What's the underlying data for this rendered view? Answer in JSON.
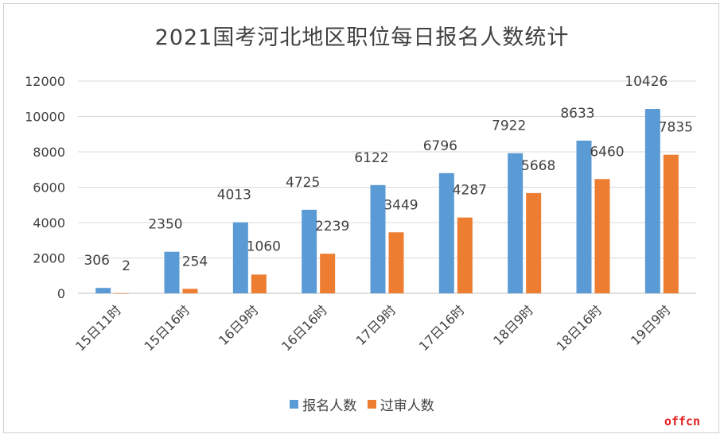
{
  "chart_data": {
    "type": "bar",
    "title": "2021国考河北地区职位每日报名人数统计",
    "categories": [
      "15日11时",
      "15日16时",
      "16日9时",
      "16日16时",
      "17日9时",
      "17日16时",
      "18日9时",
      "18日16时",
      "19日9时"
    ],
    "series": [
      {
        "name": "报名人数",
        "values": [
          306,
          2350,
          4013,
          4725,
          6122,
          6796,
          7922,
          8633,
          10426
        ],
        "color": "#5b9bd5"
      },
      {
        "name": "过审人数",
        "values": [
          2,
          254,
          1060,
          2239,
          3449,
          4287,
          5668,
          6460,
          7835
        ],
        "color": "#ed7d31"
      }
    ],
    "ylim": [
      0,
      12000
    ],
    "yticks": [
      0,
      2000,
      4000,
      6000,
      8000,
      10000,
      12000
    ],
    "grid": true,
    "legend": "bottom"
  },
  "watermark": "offcn"
}
